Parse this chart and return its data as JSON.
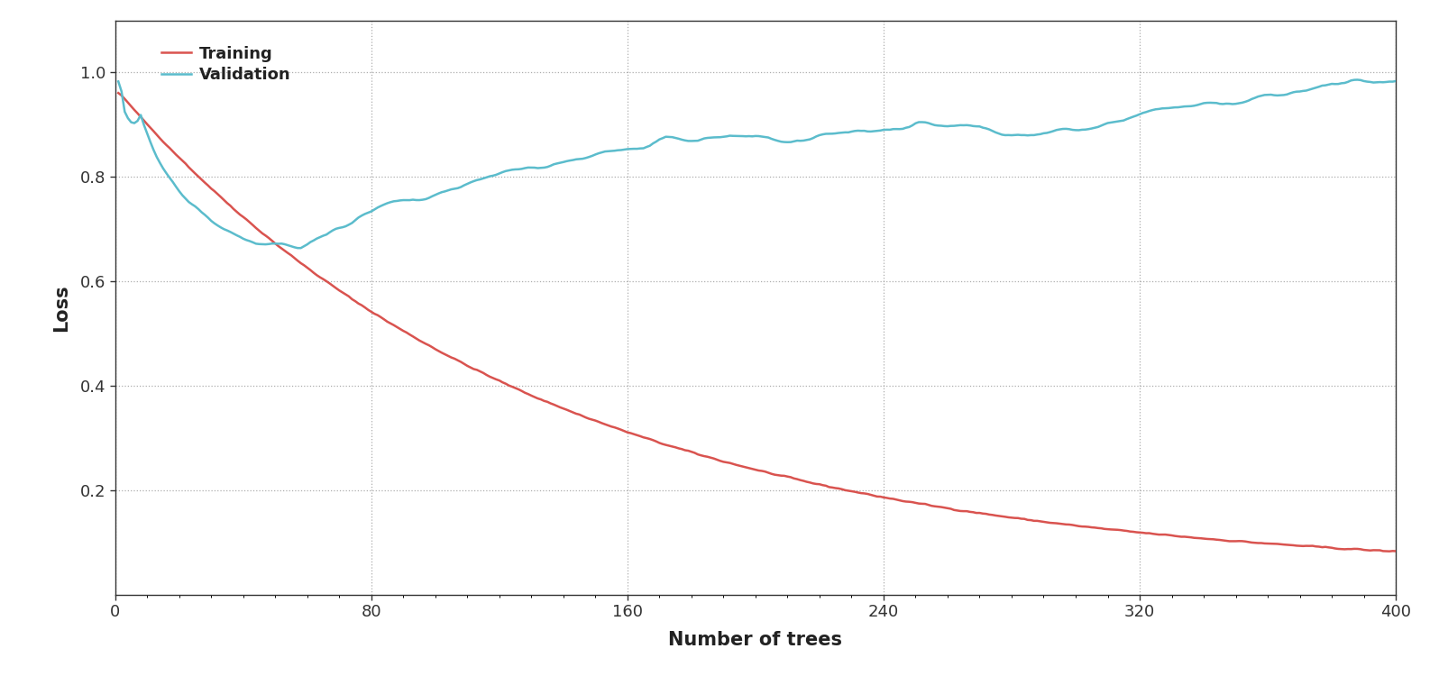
{
  "title": "",
  "xlabel": "Number of trees",
  "ylabel": "Loss",
  "xlim": [
    0,
    400
  ],
  "ylim": [
    0,
    1.1
  ],
  "xticks": [
    0,
    80,
    160,
    240,
    320,
    400
  ],
  "yticks": [
    0.2,
    0.4,
    0.6,
    0.8,
    1.0
  ],
  "training_color": "#d9534f",
  "validation_color": "#5bbccc",
  "grid_color": "#999999",
  "background_color": "#ffffff",
  "legend_labels": [
    "Training",
    "Validation"
  ],
  "n_trees": 400,
  "seed": 42,
  "fig_width": 15.96,
  "fig_height": 7.5,
  "dpi": 100
}
